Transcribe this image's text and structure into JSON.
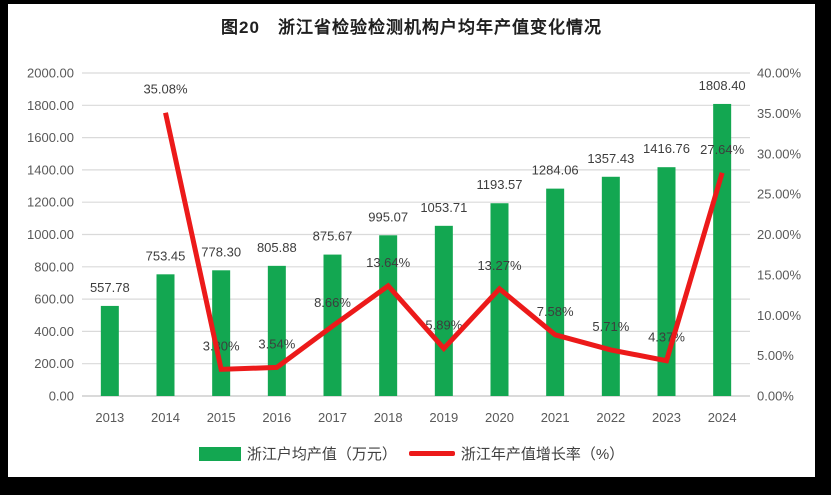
{
  "chart_data": {
    "type": "combo",
    "title": "图20　浙江省检验检测机构户均年产值变化情况",
    "xlabel": "",
    "ylabel": "",
    "grid": true,
    "legend_position": "bottom",
    "categories": [
      "2013",
      "2014",
      "2015",
      "2016",
      "2017",
      "2018",
      "2019",
      "2020",
      "2021",
      "2022",
      "2023",
      "2024"
    ],
    "series": [
      {
        "name": "浙江户均产值（万元）",
        "type": "bar",
        "axis": "left",
        "color": "#13A751",
        "values": [
          557.78,
          753.45,
          778.3,
          805.88,
          875.67,
          995.07,
          1053.71,
          1193.57,
          1284.06,
          1357.43,
          1416.76,
          1808.4
        ],
        "labels": [
          "557.78",
          "753.45",
          "778.30",
          "805.88",
          "875.67",
          "995.07",
          "1053.71",
          "1193.57",
          "1284.06",
          "1357.43",
          "1416.76",
          "1808.40"
        ]
      },
      {
        "name": "浙江年产值增长率（%）",
        "type": "line",
        "axis": "right",
        "color": "#EC1A1A",
        "values": [
          null,
          35.08,
          3.3,
          3.54,
          8.66,
          13.64,
          5.89,
          13.27,
          7.58,
          5.71,
          4.37,
          27.64
        ],
        "labels": [
          "",
          "35.08%",
          "3.30%",
          "3.54%",
          "8.66%",
          "13.64%",
          "5.89%",
          "13.27%",
          "7.58%",
          "5.71%",
          "4.37%",
          "27.64%"
        ]
      }
    ],
    "left_axis": {
      "min": 0,
      "max": 2000,
      "step": 200,
      "ticks": [
        "0.00",
        "200.00",
        "400.00",
        "600.00",
        "800.00",
        "1000.00",
        "1200.00",
        "1400.00",
        "1600.00",
        "1800.00",
        "2000.00"
      ]
    },
    "right_axis": {
      "min": 0,
      "max": 40,
      "step": 5,
      "ticks": [
        "0.00%",
        "5.00%",
        "10.00%",
        "15.00%",
        "20.00%",
        "25.00%",
        "30.00%",
        "35.00%",
        "40.00%"
      ]
    }
  },
  "legend": {
    "items": [
      {
        "label": "浙江户均产值（万元）",
        "swatch": "bar",
        "color": "#13A751"
      },
      {
        "label": "浙江年产值增长率（%）",
        "swatch": "line",
        "color": "#EC1A1A"
      }
    ]
  },
  "colors": {
    "frame": "#000000",
    "canvas": "#FFFFFF",
    "gridline": "#DADADA",
    "axis_line": "#C4C4C4",
    "tick_text": "#595959",
    "data_label_text": "#3D3D3D",
    "title_text": "#1F1F1F"
  }
}
